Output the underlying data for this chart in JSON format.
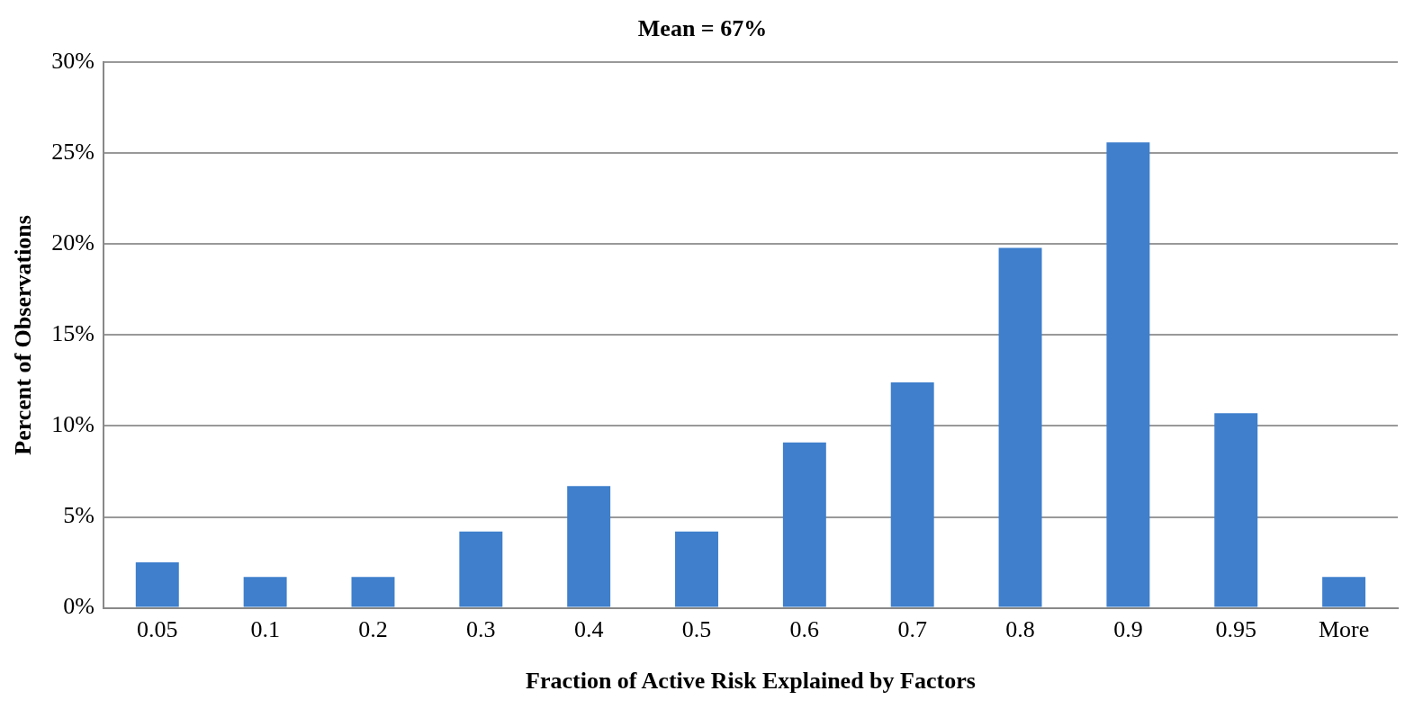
{
  "chart_data": {
    "type": "bar",
    "title": "Mean = 67%",
    "xlabel": "Fraction of Active Risk Explained by Factors",
    "ylabel": "Percent of Observations",
    "categories": [
      "0.05",
      "0.1",
      "0.2",
      "0.3",
      "0.4",
      "0.5",
      "0.6",
      "0.7",
      "0.8",
      "0.9",
      "0.95",
      "More"
    ],
    "values": [
      2.5,
      1.7,
      1.7,
      4.2,
      6.7,
      4.2,
      9.1,
      12.4,
      19.8,
      25.6,
      10.7,
      1.7
    ],
    "color": "#3f7fcc",
    "ylim": [
      0,
      30
    ],
    "yticks": [
      {
        "value": 0,
        "label": "0%"
      },
      {
        "value": 5,
        "label": "5%"
      },
      {
        "value": 10,
        "label": "10%"
      },
      {
        "value": 15,
        "label": "15%"
      },
      {
        "value": 20,
        "label": "20%"
      },
      {
        "value": 25,
        "label": "25%"
      },
      {
        "value": 30,
        "label": "30%"
      }
    ],
    "grid": "y",
    "legend": false
  }
}
